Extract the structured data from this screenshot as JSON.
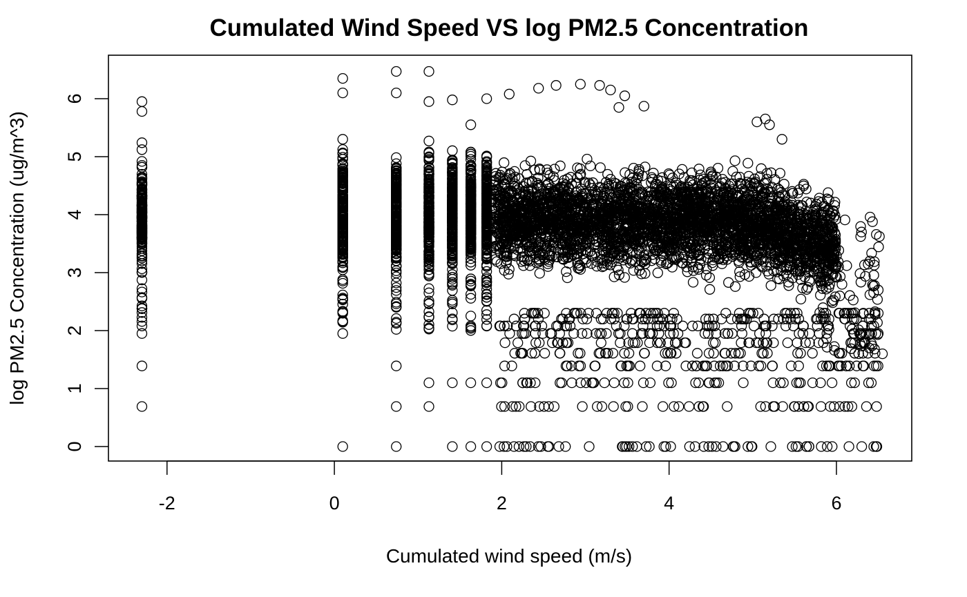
{
  "chart_data": {
    "type": "scatter",
    "title": "Cumulated Wind Speed VS log PM2.5 Concentration",
    "xlabel": "Cumulated wind speed (m/s)",
    "ylabel": "log PM2.5 Concentration (ug/m^3)",
    "xlim": [
      -2.7,
      6.9
    ],
    "ylim": [
      -0.25,
      6.75
    ],
    "xticks": [
      -2,
      0,
      2,
      4,
      6
    ],
    "yticks": [
      0,
      1,
      2,
      3,
      4,
      5,
      6
    ],
    "grid": false,
    "legend": "none",
    "marker": "open-circle",
    "color": "#000000",
    "density_note": "Points are so dense between y = 2.5 and 5 that they form a solid black mass; columns at discrete x values at the low end.",
    "discrete_x_columns": [
      -2.3,
      0.1,
      0.74,
      1.13,
      1.41,
      1.63,
      1.82
    ],
    "sample_points": [
      [
        -2.3,
        0.69
      ],
      [
        -2.3,
        1.39
      ],
      [
        -2.3,
        1.95
      ],
      [
        -2.3,
        2.08
      ],
      [
        -2.3,
        5.95
      ],
      [
        -2.3,
        5.78
      ],
      [
        0.1,
        0.0
      ],
      [
        0.1,
        1.95
      ],
      [
        0.1,
        2.3
      ],
      [
        0.1,
        6.35
      ],
      [
        0.1,
        6.1
      ],
      [
        0.74,
        0.0
      ],
      [
        0.74,
        0.69
      ],
      [
        0.74,
        1.39
      ],
      [
        0.74,
        6.47
      ],
      [
        0.74,
        6.1
      ],
      [
        1.13,
        0.69
      ],
      [
        1.13,
        1.1
      ],
      [
        1.13,
        6.47
      ],
      [
        1.13,
        5.95
      ],
      [
        1.41,
        0.0
      ],
      [
        1.41,
        1.1
      ],
      [
        1.41,
        5.98
      ],
      [
        1.63,
        0.0
      ],
      [
        1.63,
        1.1
      ],
      [
        1.63,
        5.55
      ],
      [
        1.82,
        0.0
      ],
      [
        1.82,
        1.1
      ],
      [
        1.82,
        6.0
      ],
      [
        2.09,
        6.08
      ],
      [
        2.44,
        6.18
      ],
      [
        2.65,
        6.23
      ],
      [
        2.94,
        6.25
      ],
      [
        3.17,
        6.23
      ],
      [
        3.3,
        6.15
      ],
      [
        3.47,
        6.05
      ],
      [
        3.4,
        5.85
      ],
      [
        3.7,
        5.87
      ],
      [
        5.05,
        5.6
      ],
      [
        5.15,
        5.65
      ],
      [
        5.2,
        5.55
      ],
      [
        5.35,
        5.3
      ],
      [
        5.9,
        4.38
      ],
      [
        6.3,
        3.7
      ],
      [
        6.4,
        3.2
      ],
      [
        6.5,
        2.7
      ],
      [
        6.55,
        1.6
      ],
      [
        6.5,
        1.95
      ],
      [
        6.48,
        0.69
      ],
      [
        6.48,
        0.0
      ],
      [
        6.5,
        2.3
      ]
    ]
  }
}
